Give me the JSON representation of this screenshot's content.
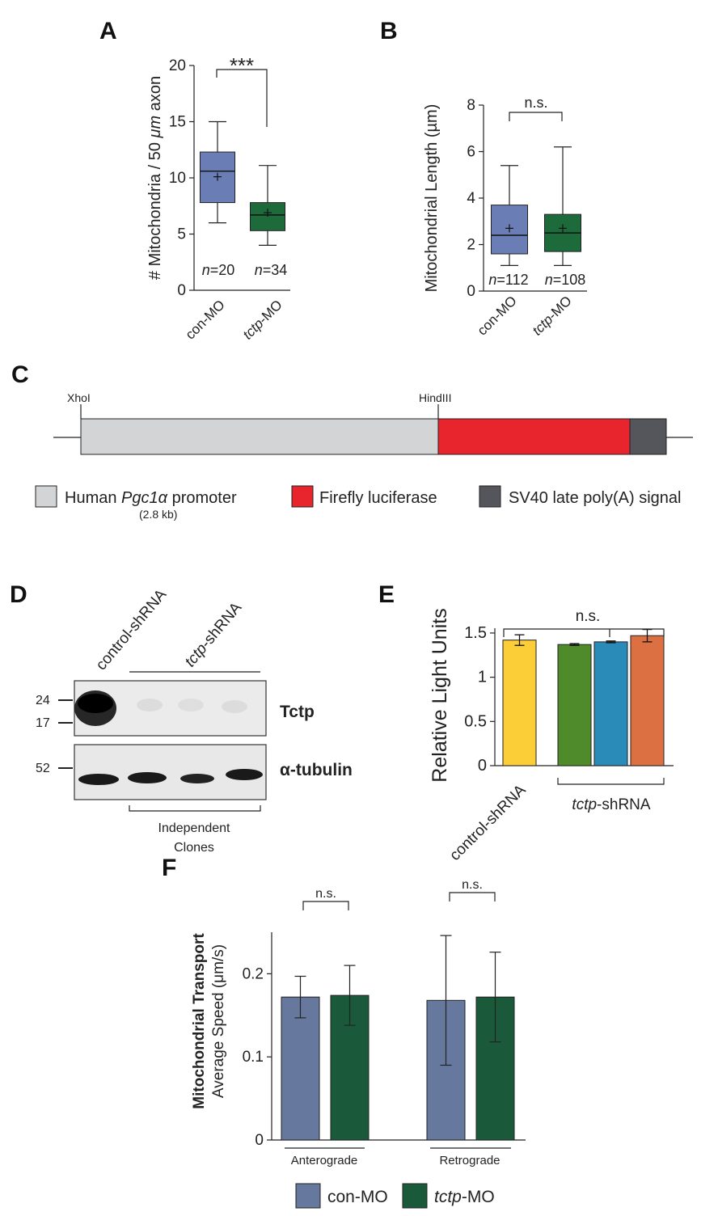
{
  "panels": {
    "A": {
      "letter": "A",
      "chart_data": {
        "type": "box",
        "ylabel_pre": "# Mitochondria / 50 ",
        "ylabel_mu": "μm",
        "ylabel_post": " axon",
        "ylim": [
          0,
          20
        ],
        "yticks": [
          0,
          5,
          10,
          15,
          20
        ],
        "groups": [
          {
            "name": "con-MO",
            "italic_part": "",
            "plain_part": "con-MO",
            "n_label": "=20",
            "color": "#6a7db5",
            "whisker_low": 6.0,
            "q1": 7.8,
            "median": 10.6,
            "q3": 12.3,
            "whisker_high": 15.0,
            "mean": 10.1
          },
          {
            "name": "tctp-MO",
            "italic_part": "tctp",
            "plain_part": "-MO",
            "n_label": "=34",
            "color": "#1d6a3a",
            "whisker_low": 4.0,
            "q1": 5.3,
            "median": 6.7,
            "q3": 7.8,
            "whisker_high": 11.1,
            "mean": 6.9
          }
        ],
        "significance": "***"
      }
    },
    "B": {
      "letter": "B",
      "chart_data": {
        "type": "box",
        "ylabel": "Mitochondrial Length (µm)",
        "ylim": [
          0,
          8
        ],
        "yticks": [
          0,
          2,
          4,
          6,
          8
        ],
        "groups": [
          {
            "name": "con-MO",
            "italic_part": "",
            "plain_part": "con-MO",
            "n_label": "=112",
            "color": "#6a7db5",
            "whisker_low": 1.1,
            "q1": 1.6,
            "median": 2.4,
            "q3": 3.7,
            "whisker_high": 5.4,
            "mean": 2.7
          },
          {
            "name": "tctp-MO",
            "italic_part": "tctp",
            "plain_part": "-MO",
            "n_label": "=108",
            "color": "#1d6a3a",
            "whisker_low": 1.1,
            "q1": 1.7,
            "median": 2.5,
            "q3": 3.3,
            "whisker_high": 6.2,
            "mean": 2.7
          }
        ],
        "significance": "n.s."
      }
    },
    "C": {
      "letter": "C",
      "site_left": "XhoI",
      "site_mid": "HindIII",
      "legend": [
        {
          "pre": "Human ",
          "italic": "Pgc1α",
          "post": " promoter",
          "sub": "(2.8 kb)",
          "color": "#d3d4d6"
        },
        {
          "pre": "Firefly luciferase",
          "italic": "",
          "post": "",
          "sub": "",
          "color": "#e8252c"
        },
        {
          "pre": "SV40 late poly(A) signal",
          "italic": "",
          "post": "",
          "sub": "",
          "color": "#55565b"
        }
      ]
    },
    "D": {
      "letter": "D",
      "lane_control": "control-shRNA",
      "lane_tctp_italic": "tctp",
      "lane_tctp_plain": "-shRNA",
      "markers_top": [
        "24",
        "17"
      ],
      "marker_bottom": "52",
      "label_top": "Tctp",
      "label_bottom": "α-tubulin",
      "clones_line1": "Independent",
      "clones_line2": "Clones"
    },
    "E": {
      "letter": "E",
      "chart_data": {
        "type": "bar",
        "ylabel": "Relative Light Units",
        "ylim": [
          0,
          1.6
        ],
        "yticks": [
          "0",
          "0.5",
          "1",
          "1.5"
        ],
        "ytick_values": [
          0,
          0.5,
          1,
          1.5
        ],
        "values": [
          1.42,
          1.37,
          1.4,
          1.47
        ],
        "errors": [
          0.06,
          0.01,
          0.01,
          0.07
        ],
        "colors": [
          "#fbcd36",
          "#4f8a2b",
          "#2a8ab8",
          "#dc7042"
        ],
        "xlabel_control": "control-shRNA",
        "xlabel_tctp_italic": "tctp",
        "xlabel_tctp_plain": "-shRNA",
        "significance": "n.s."
      }
    },
    "F": {
      "letter": "F",
      "chart_data": {
        "type": "bar",
        "ylabel_line1": "Mitochondrial Transport",
        "ylabel_line2": "Average Speed (μm/s)",
        "ylim": [
          0,
          0.25
        ],
        "yticks": [
          "0",
          "0.1",
          "0.2"
        ],
        "ytick_values": [
          0,
          0.1,
          0.2
        ],
        "categories": [
          "Anterograde",
          "Retrograde"
        ],
        "series": [
          {
            "name": "con-MO",
            "values": [
              0.172,
              0.168
            ],
            "errors": [
              0.025,
              0.078
            ],
            "color": "#67789f"
          },
          {
            "name": "tctp-MO",
            "values": [
              0.174,
              0.172
            ],
            "errors": [
              0.036,
              0.054
            ],
            "color": "#1a5a3a"
          }
        ],
        "significance": [
          "n.s.",
          "n.s."
        ],
        "legend": [
          {
            "italic": "",
            "plain": "con-MO",
            "color": "#67789f"
          },
          {
            "italic": "tctp",
            "plain": "-MO",
            "color": "#1a5a3a"
          }
        ]
      }
    }
  }
}
